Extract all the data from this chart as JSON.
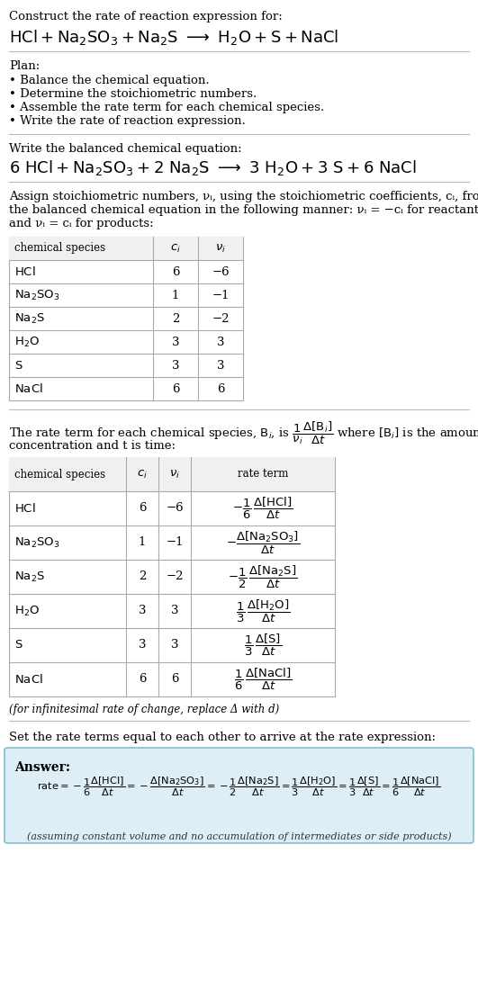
{
  "bg_color": "#ffffff",
  "text_color": "#000000",
  "title_line1": "Construct the rate of reaction expression for:",
  "plan_header": "Plan:",
  "plan_items": [
    "• Balance the chemical equation.",
    "• Determine the stoichiometric numbers.",
    "• Assemble the rate term for each chemical species.",
    "• Write the rate of reaction expression."
  ],
  "balanced_header": "Write the balanced chemical equation:",
  "stoich_line1": "Assign stoichiometric numbers, νᵢ, using the stoichiometric coefficients, cᵢ, from",
  "stoich_line2": "the balanced chemical equation in the following manner: νᵢ = −cᵢ for reactants",
  "stoich_line3": "and νᵢ = cᵢ for products:",
  "table1_data": [
    [
      "HCl",
      "6",
      "−6"
    ],
    [
      "Na₂SO₃",
      "1",
      "−1"
    ],
    [
      "Na₂S",
      "2",
      "−2"
    ],
    [
      "H₂O",
      "3",
      "3"
    ],
    [
      "S",
      "3",
      "3"
    ],
    [
      "NaCl",
      "6",
      "6"
    ]
  ],
  "rate_intro1": "The rate term for each chemical species, Bᵢ, is",
  "rate_intro2": "concentration and t is time:",
  "rate_footnote": "(for infinitesimal rate of change, replace Δ with d​)",
  "set_rate_header": "Set the rate terms equal to each other to arrive at the rate expression:",
  "answer_label": "Answer:",
  "answer_box_color": "#ddeef6",
  "answer_box_border": "#88bbcc",
  "answer_footnote": "(assuming constant volume and no accumulation of intermediates or side products)",
  "ci2": [
    "6",
    "1",
    "2",
    "3",
    "3",
    "6"
  ],
  "vi2": [
    "−6",
    "−1",
    "−2",
    "3",
    "3",
    "6"
  ]
}
